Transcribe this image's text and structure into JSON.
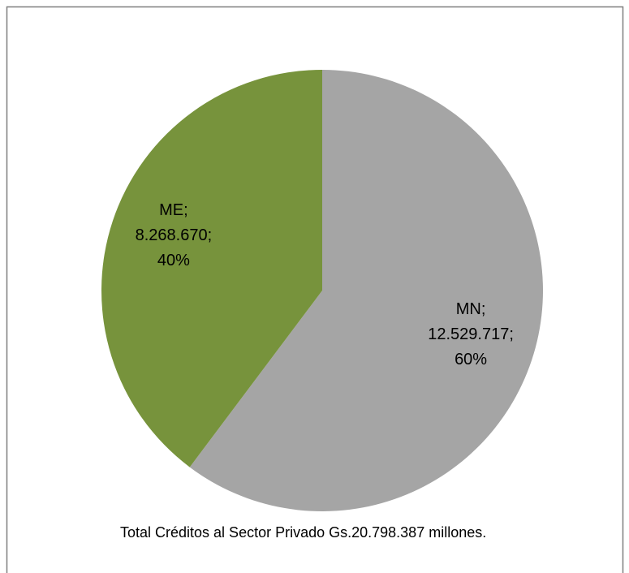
{
  "chart_data": {
    "type": "pie",
    "categories": [
      "MN",
      "ME"
    ],
    "values": [
      12529717,
      8268670
    ],
    "value_labels": [
      "12.529.717",
      "8.268.670"
    ],
    "percents": [
      60,
      40
    ],
    "percent_labels": [
      "60%",
      "40%"
    ],
    "label_separator": ";",
    "colors": [
      "#a5a5a5",
      "#77933c"
    ],
    "note": "Total Créditos al Sector Privado Gs.20.798.387 millones."
  }
}
